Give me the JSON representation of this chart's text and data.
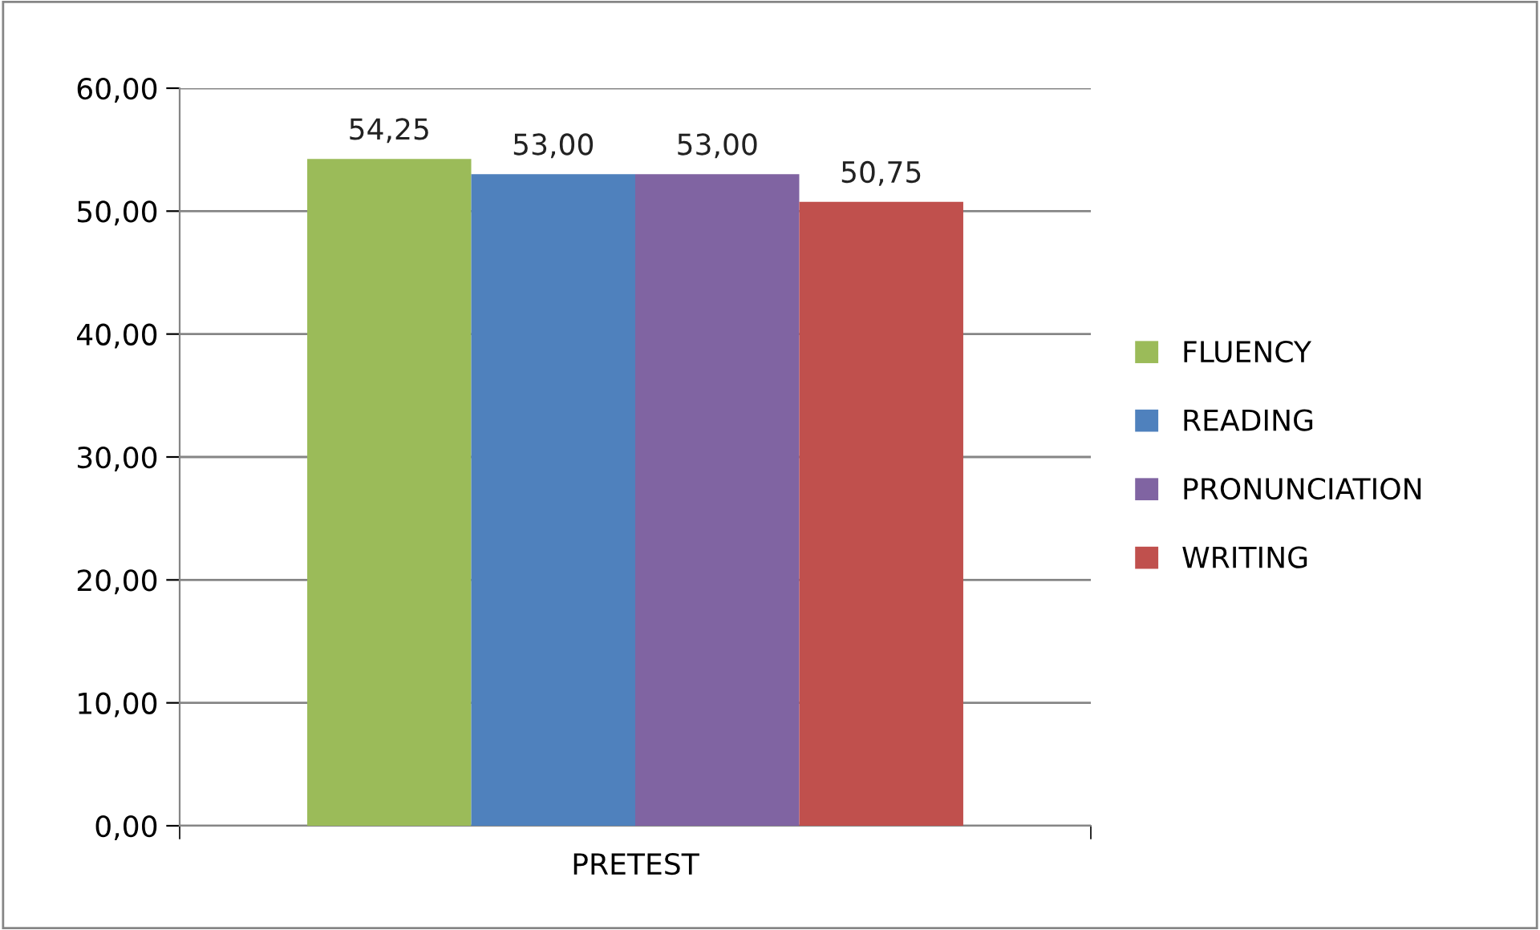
{
  "chart_data": {
    "type": "bar",
    "categories": [
      "PRETEST"
    ],
    "series": [
      {
        "name": "FLUENCY",
        "color": "#9bbb59",
        "values": [
          54.25
        ],
        "value_labels": [
          "54,25"
        ]
      },
      {
        "name": "READING",
        "color": "#4f81bd",
        "values": [
          53.0
        ],
        "value_labels": [
          "53,00"
        ]
      },
      {
        "name": "PRONUNCIATION",
        "color": "#8064a2",
        "values": [
          53.0
        ],
        "value_labels": [
          "53,00"
        ]
      },
      {
        "name": "WRITING",
        "color": "#c0504d",
        "values": [
          50.75
        ],
        "value_labels": [
          "50,75"
        ]
      }
    ],
    "ylim": [
      0,
      60
    ],
    "yticks": [
      {
        "value": 0,
        "label": "0,00"
      },
      {
        "value": 10,
        "label": "10,00"
      },
      {
        "value": 20,
        "label": "20,00"
      },
      {
        "value": 30,
        "label": "30,00"
      },
      {
        "value": 40,
        "label": "40,00"
      },
      {
        "value": 50,
        "label": "50,00"
      },
      {
        "value": 60,
        "label": "60,00"
      }
    ],
    "grid": "y",
    "legend": "right"
  }
}
